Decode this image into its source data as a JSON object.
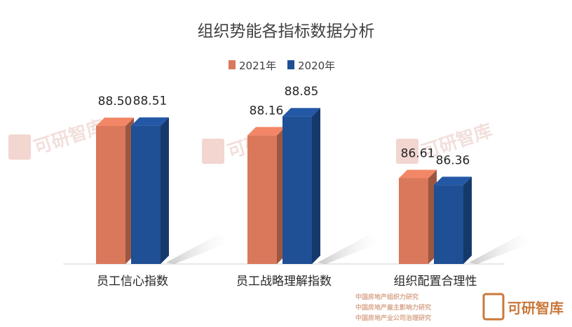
{
  "chart_data": {
    "type": "bar",
    "title": "组织势能各指标数据分析",
    "categories": [
      "员工信心指数",
      "员工战略理解指数",
      "组织配置合理性"
    ],
    "series": [
      {
        "name": "2021年",
        "values": [
          88.5,
          88.16,
          86.61
        ],
        "color": "#d9785b"
      },
      {
        "name": "2020年",
        "values": [
          88.51,
          88.85,
          86.36
        ],
        "color": "#1f4f94"
      }
    ],
    "value_labels": [
      [
        "88.50",
        "88.16",
        "86.61"
      ],
      [
        "88.51",
        "88.85",
        "86.36"
      ]
    ],
    "grid": false,
    "legend_position": "top-center"
  },
  "watermark": {
    "logo_text": "可研智库",
    "footer_lines": [
      "中国房地产组织力研究",
      "中国房地产雇主影响力研究",
      "中国房地产业公司治理研究"
    ],
    "footer_brand": "可研智库"
  }
}
